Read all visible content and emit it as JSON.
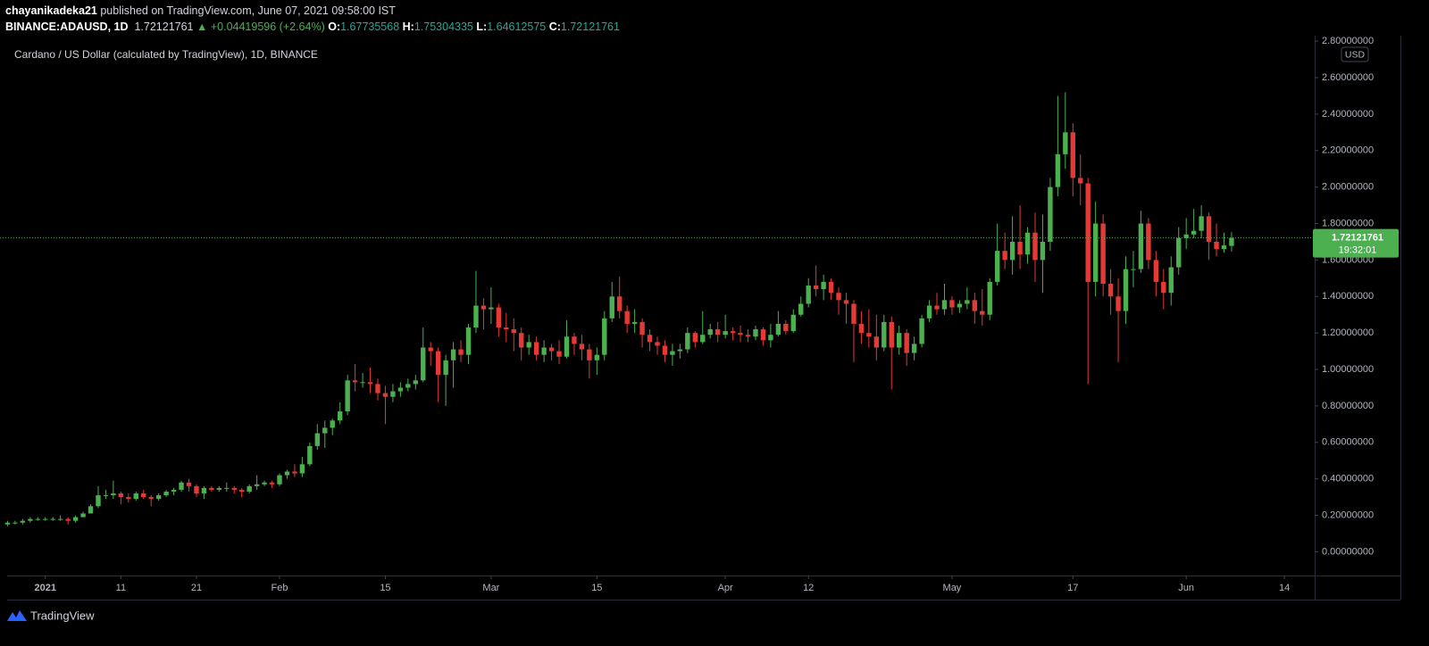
{
  "chart_data": {
    "type": "candlestick",
    "author": "chayanikadeka21",
    "published": "published on TradingView.com, June 07, 2021 09:58:00 IST",
    "symbol": "BINANCE:ADAUSD, 1D",
    "last": 1.72121761,
    "change": "▲ +0.04419596 (+2.64%)",
    "legend": [
      {
        "label": "O:",
        "value": 1.67735568
      },
      {
        "label": "H:",
        "value": 1.75304335
      },
      {
        "label": "L:",
        "value": 1.64612575
      },
      {
        "label": "C:",
        "value": 1.72121761
      }
    ],
    "title": "Cardano / US Dollar (calculated by TradingView), 1D, BINANCE",
    "currency": "USD",
    "up_color": "#4caf50",
    "down_color": "#e53935",
    "x": [
      "2020-12-27",
      "2020-12-28",
      "2020-12-29",
      "2020-12-30",
      "2020-12-31",
      "2021-01-01",
      "2021-01-02",
      "2021-01-03",
      "2021-01-04",
      "2021-01-05",
      "2021-01-06",
      "2021-01-07",
      "2021-01-08",
      "2021-01-09",
      "2021-01-10",
      "2021-01-11",
      "2021-01-12",
      "2021-01-13",
      "2021-01-14",
      "2021-01-15",
      "2021-01-16",
      "2021-01-17",
      "2021-01-18",
      "2021-01-19",
      "2021-01-20",
      "2021-01-21",
      "2021-01-22",
      "2021-01-23",
      "2021-01-24",
      "2021-01-25",
      "2021-01-26",
      "2021-01-27",
      "2021-01-28",
      "2021-01-29",
      "2021-01-30",
      "2021-01-31",
      "2021-02-01",
      "2021-02-02",
      "2021-02-03",
      "2021-02-04",
      "2021-02-05",
      "2021-02-06",
      "2021-02-07",
      "2021-02-08",
      "2021-02-09",
      "2021-02-10",
      "2021-02-11",
      "2021-02-12",
      "2021-02-13",
      "2021-02-14",
      "2021-02-15",
      "2021-02-16",
      "2021-02-17",
      "2021-02-18",
      "2021-02-19",
      "2021-02-20",
      "2021-02-21",
      "2021-02-22",
      "2021-02-23",
      "2021-02-24",
      "2021-02-25",
      "2021-02-26",
      "2021-02-27",
      "2021-02-28",
      "2021-03-01",
      "2021-03-02",
      "2021-03-03",
      "2021-03-04",
      "2021-03-05",
      "2021-03-06",
      "2021-03-07",
      "2021-03-08",
      "2021-03-09",
      "2021-03-10",
      "2021-03-11",
      "2021-03-12",
      "2021-03-13",
      "2021-03-14",
      "2021-03-15",
      "2021-03-16",
      "2021-03-17",
      "2021-03-18",
      "2021-03-19",
      "2021-03-20",
      "2021-03-21",
      "2021-03-22",
      "2021-03-23",
      "2021-03-24",
      "2021-03-25",
      "2021-03-26",
      "2021-03-27",
      "2021-03-28",
      "2021-03-29",
      "2021-03-30",
      "2021-03-31",
      "2021-04-01",
      "2021-04-02",
      "2021-04-03",
      "2021-04-04",
      "2021-04-05",
      "2021-04-06",
      "2021-04-07",
      "2021-04-08",
      "2021-04-09",
      "2021-04-10",
      "2021-04-11",
      "2021-04-12",
      "2021-04-13",
      "2021-04-14",
      "2021-04-15",
      "2021-04-16",
      "2021-04-17",
      "2021-04-18",
      "2021-04-19",
      "2021-04-20",
      "2021-04-21",
      "2021-04-22",
      "2021-04-23",
      "2021-04-24",
      "2021-04-25",
      "2021-04-26",
      "2021-04-27",
      "2021-04-28",
      "2021-04-29",
      "2021-04-30",
      "2021-05-01",
      "2021-05-02",
      "2021-05-03",
      "2021-05-04",
      "2021-05-05",
      "2021-05-06",
      "2021-05-07",
      "2021-05-08",
      "2021-05-09",
      "2021-05-10",
      "2021-05-11",
      "2021-05-12",
      "2021-05-13",
      "2021-05-14",
      "2021-05-15",
      "2021-05-16",
      "2021-05-17",
      "2021-05-18",
      "2021-05-19",
      "2021-05-20",
      "2021-05-21",
      "2021-05-22",
      "2021-05-23",
      "2021-05-24",
      "2021-05-25",
      "2021-05-26",
      "2021-05-27",
      "2021-05-28",
      "2021-05-29",
      "2021-05-30",
      "2021-05-31",
      "2021-06-01",
      "2021-06-02",
      "2021-06-03",
      "2021-06-04",
      "2021-06-05",
      "2021-06-06",
      "2021-06-07"
    ],
    "open": [
      0.15,
      0.16,
      0.16,
      0.17,
      0.18,
      0.18,
      0.18,
      0.18,
      0.18,
      0.17,
      0.19,
      0.21,
      0.25,
      0.31,
      0.31,
      0.32,
      0.3,
      0.29,
      0.32,
      0.3,
      0.29,
      0.31,
      0.33,
      0.34,
      0.38,
      0.36,
      0.32,
      0.35,
      0.34,
      0.35,
      0.35,
      0.34,
      0.33,
      0.36,
      0.37,
      0.38,
      0.37,
      0.42,
      0.44,
      0.43,
      0.48,
      0.58,
      0.65,
      0.68,
      0.72,
      0.77,
      0.94,
      0.93,
      0.93,
      0.92,
      0.87,
      0.85,
      0.88,
      0.9,
      0.92,
      0.94,
      1.12,
      1.1,
      0.97,
      1.05,
      1.11,
      1.08,
      1.23,
      1.35,
      1.33,
      1.34,
      1.23,
      1.22,
      1.2,
      1.12,
      1.15,
      1.08,
      1.12,
      1.1,
      1.07,
      1.18,
      1.14,
      1.11,
      1.05,
      1.08,
      1.28,
      1.4,
      1.32,
      1.25,
      1.26,
      1.19,
      1.15,
      1.13,
      1.08,
      1.1,
      1.11,
      1.2,
      1.15,
      1.19,
      1.22,
      1.19,
      1.21,
      1.2,
      1.19,
      1.18,
      1.22,
      1.16,
      1.19,
      1.25,
      1.21,
      1.3,
      1.36,
      1.46,
      1.44,
      1.48,
      1.42,
      1.38,
      1.36,
      1.25,
      1.2,
      1.18,
      1.12,
      1.26,
      1.12,
      1.2,
      1.09,
      1.14,
      1.28,
      1.35,
      1.33,
      1.38,
      1.34,
      1.36,
      1.38,
      1.32,
      1.3,
      1.48,
      1.65,
      1.6,
      1.7,
      1.63,
      1.75,
      1.6,
      1.7,
      2.0,
      2.18,
      2.3,
      2.05,
      2.02,
      1.48,
      1.8,
      1.47,
      1.4,
      1.32,
      1.55,
      1.55,
      1.8,
      1.6,
      1.48,
      1.42,
      1.56,
      1.72,
      1.74,
      1.76,
      1.84,
      1.7,
      1.66,
      1.67735568
    ],
    "high": [
      0.17,
      0.17,
      0.18,
      0.19,
      0.19,
      0.19,
      0.19,
      0.2,
      0.19,
      0.2,
      0.22,
      0.26,
      0.36,
      0.34,
      0.39,
      0.33,
      0.32,
      0.33,
      0.34,
      0.31,
      0.32,
      0.34,
      0.35,
      0.39,
      0.4,
      0.37,
      0.36,
      0.36,
      0.36,
      0.38,
      0.36,
      0.35,
      0.37,
      0.42,
      0.39,
      0.39,
      0.43,
      0.45,
      0.48,
      0.52,
      0.6,
      0.7,
      0.72,
      0.73,
      0.82,
      0.97,
      1.03,
      0.98,
      1.01,
      0.95,
      0.91,
      0.92,
      0.93,
      0.95,
      0.97,
      1.23,
      1.15,
      1.12,
      1.08,
      1.15,
      1.16,
      1.25,
      1.54,
      1.39,
      1.45,
      1.36,
      1.31,
      1.28,
      1.23,
      1.19,
      1.18,
      1.16,
      1.14,
      1.16,
      1.27,
      1.2,
      1.19,
      1.14,
      1.12,
      1.32,
      1.48,
      1.51,
      1.35,
      1.33,
      1.28,
      1.22,
      1.18,
      1.16,
      1.14,
      1.14,
      1.23,
      1.21,
      1.32,
      1.25,
      1.26,
      1.3,
      1.23,
      1.24,
      1.22,
      1.24,
      1.23,
      1.25,
      1.32,
      1.27,
      1.33,
      1.4,
      1.5,
      1.57,
      1.52,
      1.5,
      1.45,
      1.42,
      1.38,
      1.32,
      1.33,
      1.3,
      1.3,
      1.29,
      1.24,
      1.22,
      1.18,
      1.3,
      1.38,
      1.42,
      1.47,
      1.4,
      1.38,
      1.45,
      1.42,
      1.44,
      1.5,
      1.8,
      1.75,
      1.84,
      1.9,
      1.78,
      1.86,
      1.85,
      2.05,
      2.5,
      2.52,
      2.35,
      2.18,
      2.05,
      1.92,
      1.85,
      1.55,
      1.5,
      1.62,
      1.65,
      1.87,
      1.83,
      1.65,
      1.55,
      1.62,
      1.78,
      1.83,
      1.88,
      1.9,
      1.86,
      1.8,
      1.75,
      1.75304335
    ],
    "low": [
      0.14,
      0.15,
      0.15,
      0.16,
      0.17,
      0.17,
      0.17,
      0.17,
      0.15,
      0.16,
      0.19,
      0.21,
      0.24,
      0.29,
      0.29,
      0.26,
      0.27,
      0.28,
      0.29,
      0.25,
      0.28,
      0.3,
      0.31,
      0.33,
      0.33,
      0.3,
      0.29,
      0.33,
      0.33,
      0.33,
      0.32,
      0.3,
      0.32,
      0.34,
      0.36,
      0.35,
      0.36,
      0.4,
      0.41,
      0.41,
      0.47,
      0.56,
      0.57,
      0.64,
      0.7,
      0.75,
      0.88,
      0.9,
      0.87,
      0.83,
      0.7,
      0.82,
      0.85,
      0.88,
      0.89,
      0.93,
      1.02,
      0.82,
      0.8,
      0.9,
      1.04,
      1.03,
      1.2,
      1.22,
      1.25,
      1.18,
      1.15,
      1.1,
      1.05,
      1.08,
      1.05,
      1.04,
      1.05,
      1.03,
      1.06,
      1.08,
      1.05,
      0.95,
      0.97,
      1.05,
      1.26,
      1.28,
      1.2,
      1.2,
      1.12,
      1.1,
      1.08,
      1.04,
      1.02,
      1.06,
      1.09,
      1.12,
      1.14,
      1.17,
      1.15,
      1.17,
      1.16,
      1.15,
      1.15,
      1.16,
      1.13,
      1.12,
      1.18,
      1.19,
      1.2,
      1.29,
      1.34,
      1.4,
      1.38,
      1.38,
      1.3,
      1.25,
      1.04,
      1.14,
      1.12,
      1.05,
      1.1,
      0.89,
      1.08,
      1.02,
      1.05,
      1.12,
      1.26,
      1.3,
      1.3,
      1.3,
      1.31,
      1.33,
      1.25,
      1.24,
      1.27,
      1.46,
      1.55,
      1.52,
      1.55,
      1.58,
      1.48,
      1.42,
      1.65,
      1.95,
      2.1,
      1.95,
      1.9,
      0.92,
      1.4,
      1.4,
      1.3,
      1.04,
      1.25,
      1.45,
      1.53,
      1.55,
      1.4,
      1.33,
      1.35,
      1.52,
      1.66,
      1.72,
      1.72,
      1.6,
      1.62,
      1.64,
      1.64612575
    ],
    "close": [
      0.16,
      0.16,
      0.17,
      0.18,
      0.18,
      0.18,
      0.18,
      0.18,
      0.17,
      0.19,
      0.21,
      0.25,
      0.31,
      0.31,
      0.32,
      0.3,
      0.29,
      0.32,
      0.3,
      0.29,
      0.31,
      0.33,
      0.34,
      0.38,
      0.36,
      0.32,
      0.35,
      0.34,
      0.35,
      0.35,
      0.34,
      0.33,
      0.36,
      0.37,
      0.38,
      0.37,
      0.42,
      0.44,
      0.43,
      0.48,
      0.58,
      0.65,
      0.68,
      0.72,
      0.77,
      0.94,
      0.93,
      0.93,
      0.92,
      0.87,
      0.85,
      0.88,
      0.9,
      0.92,
      0.94,
      1.12,
      1.1,
      0.97,
      1.05,
      1.11,
      1.08,
      1.23,
      1.35,
      1.33,
      1.34,
      1.23,
      1.22,
      1.2,
      1.12,
      1.15,
      1.08,
      1.12,
      1.1,
      1.07,
      1.18,
      1.14,
      1.11,
      1.05,
      1.08,
      1.28,
      1.4,
      1.32,
      1.25,
      1.26,
      1.19,
      1.15,
      1.13,
      1.08,
      1.1,
      1.11,
      1.2,
      1.15,
      1.19,
      1.22,
      1.19,
      1.21,
      1.2,
      1.19,
      1.18,
      1.22,
      1.16,
      1.19,
      1.25,
      1.21,
      1.3,
      1.36,
      1.46,
      1.44,
      1.48,
      1.42,
      1.38,
      1.36,
      1.25,
      1.2,
      1.18,
      1.12,
      1.26,
      1.12,
      1.2,
      1.09,
      1.14,
      1.28,
      1.35,
      1.33,
      1.38,
      1.34,
      1.36,
      1.38,
      1.32,
      1.3,
      1.48,
      1.65,
      1.6,
      1.7,
      1.63,
      1.75,
      1.6,
      1.7,
      2.0,
      2.18,
      2.3,
      2.05,
      2.02,
      1.48,
      1.8,
      1.47,
      1.4,
      1.32,
      1.55,
      1.55,
      1.8,
      1.6,
      1.48,
      1.42,
      1.56,
      1.72,
      1.74,
      1.76,
      1.84,
      1.7,
      1.66,
      1.68,
      1.72121761
    ],
    "xlim": [
      "2020-12-26",
      "2021-06-18"
    ],
    "xticks": [
      {
        "value": "2021-01-01",
        "label": "2021"
      },
      {
        "value": "2021-01-11",
        "label": "11"
      },
      {
        "value": "2021-01-21",
        "label": "21"
      },
      {
        "value": "2021-02-01",
        "label": "Feb"
      },
      {
        "value": "2021-02-15",
        "label": "15"
      },
      {
        "value": "2021-03-01",
        "label": "Mar"
      },
      {
        "value": "2021-03-15",
        "label": "15"
      },
      {
        "value": "2021-04-01",
        "label": "Apr"
      },
      {
        "value": "2021-04-12",
        "label": "12"
      },
      {
        "value": "2021-05-01",
        "label": "May"
      },
      {
        "value": "2021-05-17",
        "label": "17"
      },
      {
        "value": "2021-06-01",
        "label": "Jun"
      },
      {
        "value": "2021-06-14",
        "label": "14"
      }
    ],
    "ylim": [
      -0.13,
      2.83
    ],
    "yticks": [
      {
        "value": 0,
        "label": "0.00000000"
      },
      {
        "value": 0.2,
        "label": "0.20000000"
      },
      {
        "value": 0.4,
        "label": "0.40000000"
      },
      {
        "value": 0.6,
        "label": "0.60000000"
      },
      {
        "value": 0.8,
        "label": "0.80000000"
      },
      {
        "value": 1,
        "label": "1.00000000"
      },
      {
        "value": 1.2,
        "label": "1.20000000"
      },
      {
        "value": 1.4,
        "label": "1.40000000"
      },
      {
        "value": 1.6,
        "label": "1.60000000"
      },
      {
        "value": 1.8,
        "label": "1.80000000"
      },
      {
        "value": 2,
        "label": "2.00000000"
      },
      {
        "value": 2.2,
        "label": "2.20000000"
      },
      {
        "value": 2.4,
        "label": "2.40000000"
      },
      {
        "value": 2.6,
        "label": "2.60000000"
      },
      {
        "value": 2.8,
        "label": "2.80000000"
      }
    ],
    "grid": false,
    "last_price": 1.72121761,
    "countdown": "19:32:01",
    "brand": "TradingView"
  }
}
